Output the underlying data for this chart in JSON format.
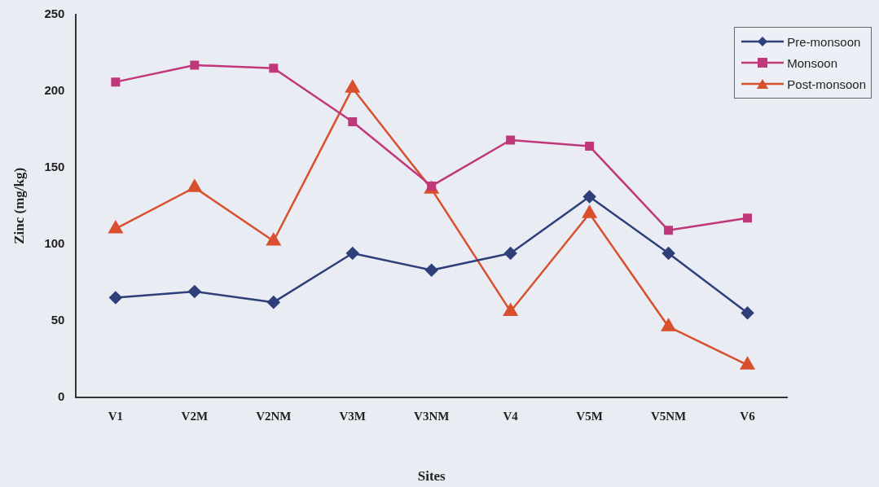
{
  "chart_data": {
    "type": "line",
    "xlabel": "Sites",
    "ylabel": "Zinc (mg/kg)",
    "categories": [
      "V1",
      "V2M",
      "V2NM",
      "V3M",
      "V3NM",
      "V4",
      "V5M",
      "V5NM",
      "V6"
    ],
    "series": [
      {
        "name": "Pre-monsoon",
        "color": "#2e3f7a",
        "marker": "diamond",
        "values": [
          65,
          69,
          62,
          94,
          83,
          94,
          131,
          94,
          55
        ]
      },
      {
        "name": "Monsoon",
        "color": "#c0377a",
        "marker": "square",
        "values": [
          206,
          217,
          215,
          180,
          138,
          168,
          164,
          109,
          117
        ]
      },
      {
        "name": "Post-monsoon",
        "color": "#d9502f",
        "marker": "triangle",
        "values": [
          110,
          137,
          102,
          202,
          136,
          56,
          120,
          46,
          21
        ]
      }
    ],
    "ylim": [
      0,
      250
    ],
    "yticks": [
      0,
      50,
      100,
      150,
      200,
      250
    ],
    "grid": false,
    "legend": "top right",
    "line_style": "solid"
  }
}
